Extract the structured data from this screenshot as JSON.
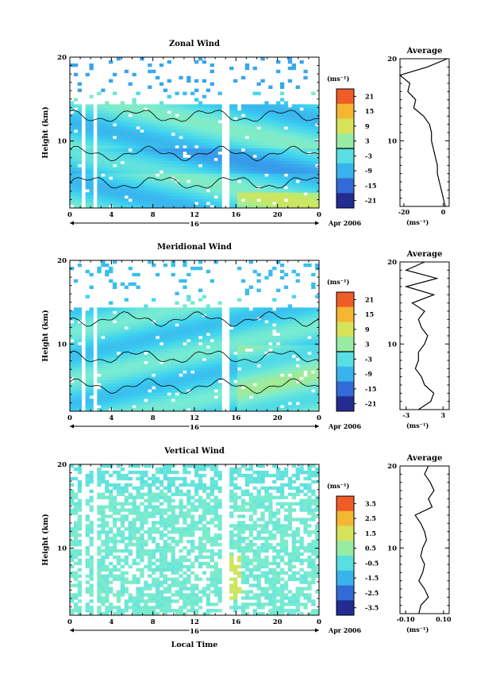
{
  "shared": {
    "xlabel": "Local Time",
    "xticks": [
      "0",
      "4",
      "8",
      "12",
      "16",
      "20",
      "0"
    ],
    "day_label": "16",
    "month_label": "Apr 2006",
    "units": "(ms⁻¹)"
  },
  "chart_data": [
    {
      "type": "heatmap",
      "title": "Zonal Wind",
      "ylabel": "Height (km)",
      "ytick_labels": [
        "10",
        "20"
      ],
      "xlim": [
        0,
        24
      ],
      "ylim": [
        2,
        20
      ],
      "colorbar_ticks": [
        "21",
        "15",
        "9",
        "3",
        "-3",
        "-9",
        "-15",
        "-21"
      ],
      "colorbar_range": [
        -24,
        24
      ],
      "profile": {
        "title": "Average",
        "xtick_labels": [
          "-20",
          "0"
        ],
        "xlim": [
          -22,
          3
        ],
        "ytick_labels": [
          "10",
          "20"
        ],
        "heights": [
          2,
          3,
          4,
          5,
          6,
          7,
          8,
          9,
          10,
          11,
          12,
          13,
          14,
          15,
          16,
          17,
          18,
          19,
          20
        ],
        "values": [
          1,
          0,
          -1,
          -2,
          -3,
          -3,
          -4,
          -5,
          -6,
          -6,
          -7,
          -10,
          -15,
          -14,
          -18,
          -17,
          -22,
          -8,
          2
        ]
      }
    },
    {
      "type": "heatmap",
      "title": "Meridional Wind",
      "ylabel": "Height (km)",
      "ytick_labels": [
        "10",
        "20"
      ],
      "xlim": [
        0,
        24
      ],
      "ylim": [
        2,
        20
      ],
      "colorbar_ticks": [
        "21",
        "15",
        "9",
        "3",
        "-3",
        "-9",
        "-15",
        "-21"
      ],
      "colorbar_range": [
        -24,
        24
      ],
      "profile": {
        "title": "Average",
        "xtick_labels": [
          "-3",
          "3"
        ],
        "xlim": [
          -4,
          4
        ],
        "ytick_labels": [
          "10",
          "20"
        ],
        "heights": [
          2,
          3,
          4,
          5,
          6,
          7,
          8,
          9,
          10,
          11,
          12,
          13,
          14,
          15,
          16,
          17,
          18,
          19,
          20
        ],
        "values": [
          -1,
          1,
          1.5,
          0,
          -0.5,
          -1.5,
          -1,
          -1,
          0,
          0.5,
          -0.5,
          -1,
          0,
          -2,
          1.5,
          -3,
          2,
          -3,
          0
        ]
      }
    },
    {
      "type": "heatmap",
      "title": "Vertical Wind",
      "ylabel": "Height (km)",
      "ytick_labels": [
        "10",
        "20"
      ],
      "xlim": [
        0,
        24
      ],
      "ylim": [
        2,
        20
      ],
      "colorbar_ticks": [
        "3.5",
        "2.5",
        "1.5",
        "0.5",
        "-0.5",
        "-1.5",
        "-2.5",
        "-3.5"
      ],
      "colorbar_range": [
        -4,
        4
      ],
      "profile": {
        "title": "Average",
        "xtick_labels": [
          "-0.10",
          "0.10"
        ],
        "xlim": [
          -0.13,
          0.13
        ],
        "ytick_labels": [
          "10",
          "20"
        ],
        "heights": [
          2,
          3,
          4,
          5,
          6,
          7,
          8,
          9,
          10,
          11,
          12,
          13,
          14,
          15,
          16,
          17,
          18,
          19,
          20
        ],
        "values": [
          -0.03,
          -0.02,
          0.02,
          0.0,
          -0.03,
          -0.01,
          0.0,
          -0.02,
          -0.01,
          0.01,
          0.0,
          -0.02,
          -0.05,
          0.04,
          0.02,
          0.05,
          0.03,
          0.0,
          0.02
        ]
      }
    }
  ]
}
